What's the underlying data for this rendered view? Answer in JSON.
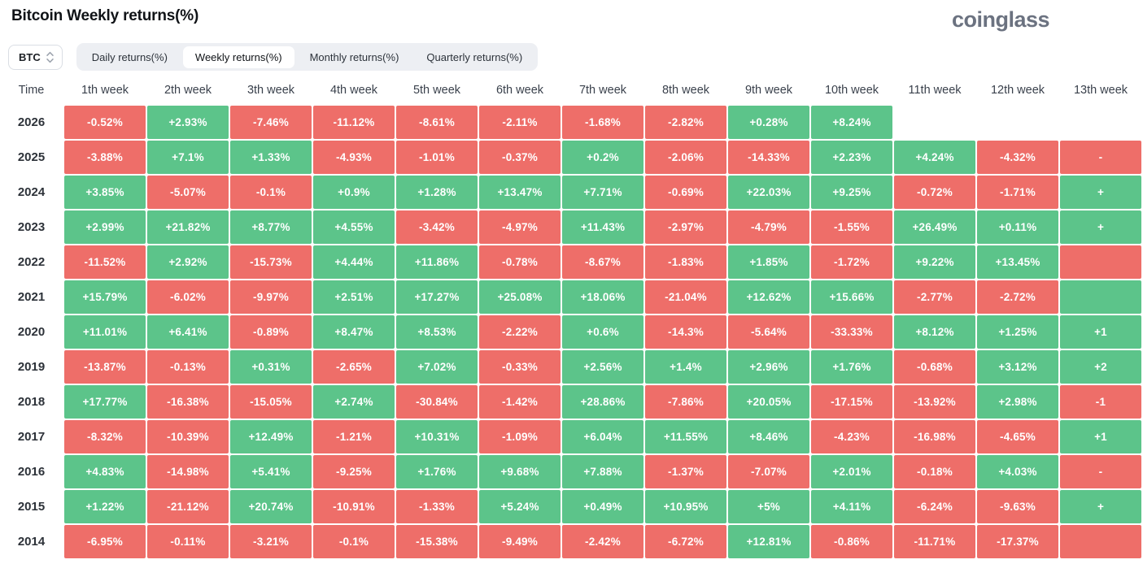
{
  "header": {
    "title": "Bitcoin Weekly returns(%)",
    "logo": "coinglass"
  },
  "controls": {
    "coin": "BTC",
    "tabs": [
      {
        "label": "Daily returns(%)",
        "active": false
      },
      {
        "label": "Weekly returns(%)",
        "active": true
      },
      {
        "label": "Monthly returns(%)",
        "active": false
      },
      {
        "label": "Quarterly returns(%)",
        "active": false
      }
    ]
  },
  "chart_data": {
    "type": "heatmap",
    "title": "Bitcoin Weekly returns(%)",
    "row_header": "Time",
    "columns": [
      "1th week",
      "2th week",
      "3th week",
      "4th week",
      "5th week",
      "6th week",
      "7th week",
      "8th week",
      "9th week",
      "10th week",
      "11th week",
      "12th week",
      "13th week"
    ],
    "colors": {
      "positive": "#5cc48a",
      "negative": "#ee6e69"
    },
    "legend": "cells colored green for positive weekly return, red for negative; 13th week column is partially cut off at right edge of viewport",
    "rows": [
      {
        "year": "2026",
        "values": [
          "-0.52%",
          "+2.93%",
          "-7.46%",
          "-11.12%",
          "-8.61%",
          "-2.11%",
          "-1.68%",
          "-2.82%",
          "+0.28%",
          "+8.24%"
        ],
        "week13": null
      },
      {
        "year": "2025",
        "values": [
          "-3.88%",
          "+7.1%",
          "+1.33%",
          "-4.93%",
          "-1.01%",
          "-0.37%",
          "+0.2%",
          "-2.06%",
          "-14.33%",
          "+2.23%",
          "+4.24%",
          "-4.32%"
        ],
        "week13": {
          "color": "negative",
          "text": "-"
        }
      },
      {
        "year": "2024",
        "values": [
          "+3.85%",
          "-5.07%",
          "-0.1%",
          "+0.9%",
          "+1.28%",
          "+13.47%",
          "+7.71%",
          "-0.69%",
          "+22.03%",
          "+9.25%",
          "-0.72%",
          "-1.71%"
        ],
        "week13": {
          "color": "positive",
          "text": "+"
        }
      },
      {
        "year": "2023",
        "values": [
          "+2.99%",
          "+21.82%",
          "+8.77%",
          "+4.55%",
          "-3.42%",
          "-4.97%",
          "+11.43%",
          "-2.97%",
          "-4.79%",
          "-1.55%",
          "+26.49%",
          "+0.11%"
        ],
        "week13": {
          "color": "positive",
          "text": "+"
        }
      },
      {
        "year": "2022",
        "values": [
          "-11.52%",
          "+2.92%",
          "-15.73%",
          "+4.44%",
          "+11.86%",
          "-0.78%",
          "-8.67%",
          "-1.83%",
          "+1.85%",
          "-1.72%",
          "+9.22%",
          "+13.45%"
        ],
        "week13": {
          "color": "negative",
          "text": ""
        }
      },
      {
        "year": "2021",
        "values": [
          "+15.79%",
          "-6.02%",
          "-9.97%",
          "+2.51%",
          "+17.27%",
          "+25.08%",
          "+18.06%",
          "-21.04%",
          "+12.62%",
          "+15.66%",
          "-2.77%",
          "-2.72%"
        ],
        "week13": {
          "color": "positive",
          "text": ""
        }
      },
      {
        "year": "2020",
        "values": [
          "+11.01%",
          "+6.41%",
          "-0.89%",
          "+8.47%",
          "+8.53%",
          "-2.22%",
          "+0.6%",
          "-14.3%",
          "-5.64%",
          "-33.33%",
          "+8.12%",
          "+1.25%"
        ],
        "week13": {
          "color": "positive",
          "text": "+1"
        }
      },
      {
        "year": "2019",
        "values": [
          "-13.87%",
          "-0.13%",
          "+0.31%",
          "-2.65%",
          "+7.02%",
          "-0.33%",
          "+2.56%",
          "+1.4%",
          "+2.96%",
          "+1.76%",
          "-0.68%",
          "+3.12%"
        ],
        "week13": {
          "color": "positive",
          "text": "+2"
        }
      },
      {
        "year": "2018",
        "values": [
          "+17.77%",
          "-16.38%",
          "-15.05%",
          "+2.74%",
          "-30.84%",
          "-1.42%",
          "+28.86%",
          "-7.86%",
          "+20.05%",
          "-17.15%",
          "-13.92%",
          "+2.98%"
        ],
        "week13": {
          "color": "negative",
          "text": "-1"
        }
      },
      {
        "year": "2017",
        "values": [
          "-8.32%",
          "-10.39%",
          "+12.49%",
          "-1.21%",
          "+10.31%",
          "-1.09%",
          "+6.04%",
          "+11.55%",
          "+8.46%",
          "-4.23%",
          "-16.98%",
          "-4.65%"
        ],
        "week13": {
          "color": "positive",
          "text": "+1"
        }
      },
      {
        "year": "2016",
        "values": [
          "+4.83%",
          "-14.98%",
          "+5.41%",
          "-9.25%",
          "+1.76%",
          "+9.68%",
          "+7.88%",
          "-1.37%",
          "-7.07%",
          "+2.01%",
          "-0.18%",
          "+4.03%"
        ],
        "week13": {
          "color": "negative",
          "text": "-"
        }
      },
      {
        "year": "2015",
        "values": [
          "+1.22%",
          "-21.12%",
          "+20.74%",
          "-10.91%",
          "-1.33%",
          "+5.24%",
          "+0.49%",
          "+10.95%",
          "+5%",
          "+4.11%",
          "-6.24%",
          "-9.63%"
        ],
        "week13": {
          "color": "positive",
          "text": "+"
        }
      },
      {
        "year": "2014",
        "values": [
          "-6.95%",
          "-0.11%",
          "-3.21%",
          "-0.1%",
          "-15.38%",
          "-9.49%",
          "-2.42%",
          "-6.72%",
          "+12.81%",
          "-0.86%",
          "-11.71%",
          "-17.37%"
        ],
        "week13": {
          "color": "negative",
          "text": ""
        }
      }
    ]
  }
}
